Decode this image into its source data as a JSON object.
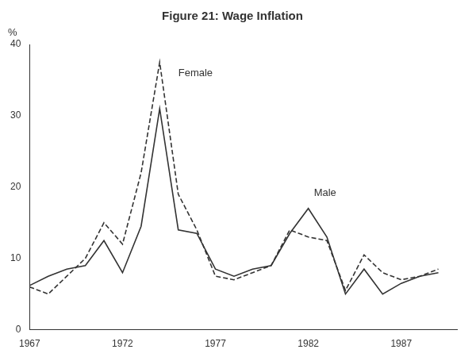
{
  "chart_data": {
    "type": "line",
    "title": "Figure 21: Wage Inflation",
    "ylabel": "%",
    "x": [
      1967,
      1968,
      1969,
      1970,
      1971,
      1972,
      1973,
      1974,
      1975,
      1976,
      1977,
      1978,
      1979,
      1980,
      1981,
      1982,
      1983,
      1984,
      1985,
      1986,
      1987,
      1988,
      1989
    ],
    "series": [
      {
        "name": "Male",
        "color": "#333333",
        "line_style": "solid",
        "values": [
          6.2,
          7.5,
          8.5,
          9.0,
          12.5,
          8.0,
          14.5,
          31.0,
          14.0,
          13.5,
          8.5,
          7.5,
          8.5,
          9.0,
          13.5,
          17.0,
          13.0,
          5.0,
          8.5,
          5.0,
          6.5,
          7.5,
          8.0
        ]
      },
      {
        "name": "Female",
        "color": "#333333",
        "line_style": "dashed",
        "values": [
          6.0,
          5.0,
          7.5,
          10.0,
          15.0,
          12.0,
          22.0,
          37.5,
          19.0,
          14.0,
          7.5,
          7.0,
          8.0,
          9.0,
          14.0,
          13.0,
          12.5,
          5.5,
          10.5,
          8.0,
          7.0,
          7.5,
          8.5
        ]
      }
    ],
    "xlim": [
      1967,
      1990
    ],
    "xticks": [
      1967,
      1972,
      1977,
      1982,
      1987
    ],
    "ylim": [
      0,
      40
    ],
    "yticks": [
      0,
      10,
      20,
      30,
      40
    ],
    "grid": false,
    "annotations": [
      {
        "text": "Female",
        "x": 1975.0,
        "y": 35.5
      },
      {
        "text": "Male",
        "x": 1982.3,
        "y": 18.8
      }
    ]
  }
}
